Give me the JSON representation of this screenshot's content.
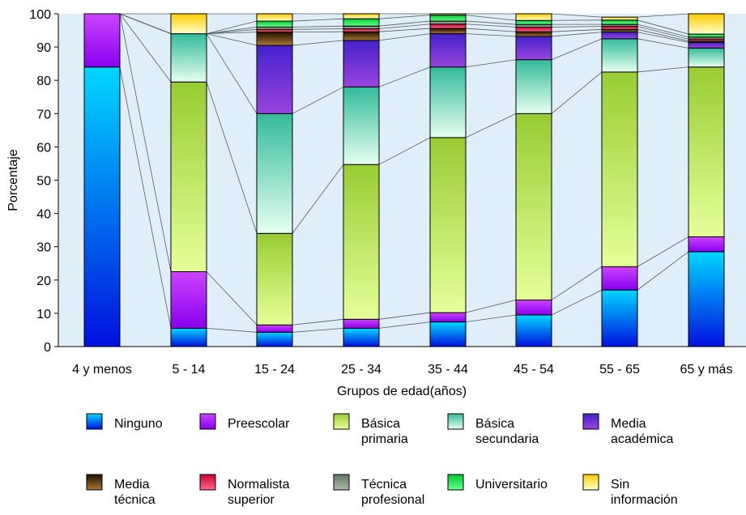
{
  "chart_data": {
    "type": "bar",
    "stacked": true,
    "xlabel": "Grupos de edad(años)",
    "ylabel": "Porcentaje",
    "ylim": [
      0,
      100
    ],
    "yticks": [
      0,
      10,
      20,
      30,
      40,
      50,
      60,
      70,
      80,
      90,
      100
    ],
    "grid": false,
    "legend_position": "bottom",
    "categories": [
      "4 y menos",
      "5 - 14",
      "15 - 24",
      "25 - 34",
      "35 - 44",
      "45 - 54",
      "55 - 65",
      "65 y más"
    ],
    "series": [
      {
        "name": "Ninguno",
        "color_top": "#00d8ff",
        "color_bottom": "#0010e0",
        "values": [
          84,
          5.5,
          4.3,
          5.5,
          7.4,
          9.5,
          17,
          28.5
        ]
      },
      {
        "name": "Preescolar",
        "color_top": "#cc44ff",
        "color_bottom": "#8800ee",
        "values": [
          16,
          17,
          2.2,
          2.7,
          2.8,
          4.5,
          7,
          4.5
        ]
      },
      {
        "name": "Básica primaria",
        "color_top": "#99cc33",
        "color_bottom": "#e6ff99",
        "values": [
          0,
          57,
          27.5,
          46.5,
          52.6,
          56,
          58.5,
          51
        ]
      },
      {
        "name": "Básica secundaria",
        "color_top": "#33bb99",
        "color_bottom": "#e6fff0",
        "values": [
          0,
          14.5,
          36,
          23.3,
          21.2,
          16.2,
          10,
          5.7
        ]
      },
      {
        "name": "Media académica",
        "color_top": "#4422cc",
        "color_bottom": "#9944dd",
        "values": [
          0,
          0,
          20.5,
          14,
          10,
          7,
          2,
          1.7
        ]
      },
      {
        "name": "Media técnica",
        "color_top": "#221100",
        "color_bottom": "#aa7733",
        "values": [
          0,
          0,
          4,
          2.6,
          1.6,
          1.4,
          0.8,
          0.4
        ]
      },
      {
        "name": "Normalista superior",
        "color_top": "#cc0033",
        "color_bottom": "#ff6688",
        "values": [
          0,
          0,
          0.8,
          0.9,
          1.3,
          1.4,
          0.9,
          0.6
        ]
      },
      {
        "name": "Técnica profesional",
        "color_top": "#667766",
        "color_bottom": "#aabbaa",
        "values": [
          0,
          0,
          0.7,
          0.8,
          0.9,
          0.8,
          0.6,
          0.6
        ]
      },
      {
        "name": "Universitario",
        "color_top": "#00cc33",
        "color_bottom": "#66ff88",
        "values": [
          0,
          0,
          1.8,
          2.2,
          1.8,
          1.2,
          1.3,
          0.9
        ]
      },
      {
        "name": "Sin información",
        "color_top": "#ffcc00",
        "color_bottom": "#ffffcc",
        "values": [
          0,
          6,
          2.2,
          1.5,
          0.4,
          2.0,
          0.9,
          6.1
        ]
      }
    ],
    "legend": [
      [
        "Ninguno"
      ],
      [
        "Preescolar"
      ],
      [
        "Básica",
        "primaria"
      ],
      [
        "Básica",
        "secundaria"
      ],
      [
        "Media",
        "académica"
      ],
      [
        "Media",
        "técnica"
      ],
      [
        "Normalista",
        "superior"
      ],
      [
        "Técnica",
        "profesional"
      ],
      [
        "Universitario"
      ],
      [
        "Sin",
        "información"
      ]
    ],
    "colors": {
      "plot_background": "#e0eefa",
      "connector_lines": "#5a5a5a",
      "bar_outline": "#000000"
    }
  }
}
